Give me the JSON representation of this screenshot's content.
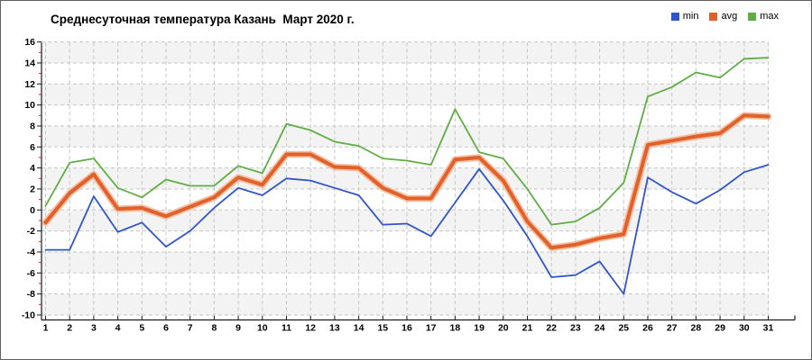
{
  "chart_data": {
    "type": "line",
    "title": "Среднесуточная температура Казань  Март 2020 г.",
    "categories": [
      1,
      2,
      3,
      4,
      5,
      6,
      7,
      8,
      9,
      10,
      11,
      12,
      13,
      14,
      15,
      16,
      17,
      18,
      19,
      20,
      21,
      22,
      23,
      24,
      25,
      26,
      27,
      28,
      29,
      30,
      31
    ],
    "series": [
      {
        "name": "min",
        "color": "#2f55cc",
        "width": 1.8,
        "values": [
          -3.8,
          -3.8,
          1.3,
          -2.1,
          -1.2,
          -3.5,
          -2.0,
          0.2,
          2.1,
          1.4,
          3.0,
          2.8,
          2.1,
          1.4,
          -1.4,
          -1.3,
          -2.5,
          0.7,
          3.9,
          0.9,
          -2.5,
          -6.4,
          -6.2,
          -4.9,
          -8.0,
          3.1,
          1.7,
          0.6,
          1.9,
          3.6,
          4.3
        ]
      },
      {
        "name": "avg",
        "color": "#e0612b",
        "halo_color": "#f5bf9f",
        "width": 4,
        "values": [
          -1.2,
          1.6,
          3.4,
          0.1,
          0.2,
          -0.6,
          0.3,
          1.2,
          3.1,
          2.4,
          5.3,
          5.3,
          4.1,
          4.0,
          2.1,
          1.1,
          1.1,
          4.8,
          5.0,
          2.8,
          -1.1,
          -3.6,
          -3.3,
          -2.7,
          -2.3,
          6.2,
          6.6,
          7.0,
          7.3,
          9.0,
          8.9
        ]
      },
      {
        "name": "max",
        "color": "#5fae43",
        "width": 1.8,
        "values": [
          0.4,
          4.5,
          4.9,
          2.1,
          1.2,
          2.9,
          2.3,
          2.3,
          4.2,
          3.5,
          8.2,
          7.6,
          6.5,
          6.1,
          4.9,
          4.7,
          4.3,
          9.6,
          5.5,
          4.9,
          2.0,
          -1.4,
          -1.1,
          0.2,
          2.6,
          10.8,
          11.7,
          13.1,
          12.6,
          14.4,
          14.5
        ]
      }
    ],
    "ylim": [
      -10,
      16
    ],
    "y_ticks": [
      -10,
      -8,
      -6,
      -4,
      -2,
      0,
      2,
      4,
      6,
      8,
      10,
      12,
      14,
      16
    ],
    "x_ticks": [
      1,
      2,
      3,
      4,
      5,
      6,
      7,
      8,
      9,
      10,
      11,
      12,
      13,
      14,
      15,
      16,
      17,
      18,
      19,
      20,
      21,
      22,
      23,
      24,
      25,
      26,
      27,
      28,
      29,
      30,
      31
    ],
    "grid": true,
    "legend_position": "top-right",
    "style": {
      "band_color": "#f3f3f3",
      "grid_color": "#c6c6c6",
      "axis_color": "#1a1a1a",
      "minor_tick_color": "#cc2222",
      "text_color": "#000000",
      "background": "#ffffff",
      "border_color": "#606060"
    }
  }
}
